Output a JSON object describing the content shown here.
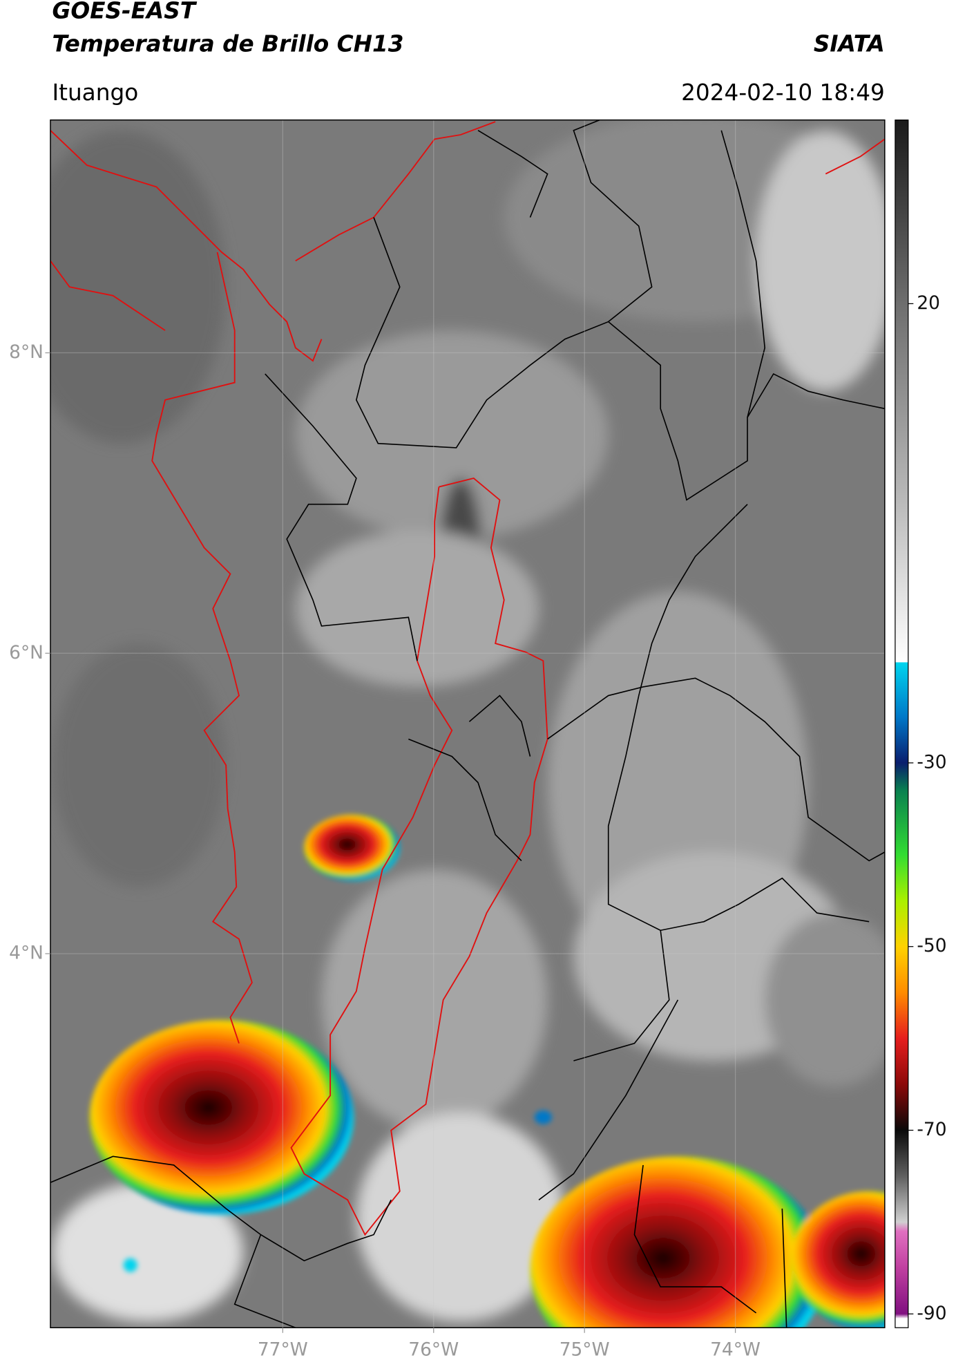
{
  "header": {
    "title": "GOES-EAST",
    "subtitle": "Temperatura de Brillo CH13",
    "agency": "SIATA",
    "location": "Ituango",
    "datetime": "2024-02-10 18:49"
  },
  "map": {
    "lonlim": [
      -78.54,
      -73.01
    ],
    "latlim": [
      1.51,
      9.55
    ],
    "lonticks": [
      {
        "value": -77,
        "label": "77°W"
      },
      {
        "value": -76,
        "label": "76°W"
      },
      {
        "value": -75,
        "label": "75°W"
      },
      {
        "value": -74,
        "label": "74°W"
      }
    ],
    "latticks": [
      {
        "value": 8,
        "label": "8°N"
      },
      {
        "value": 6,
        "label": "6°N"
      },
      {
        "value": 4,
        "label": "4°N"
      }
    ],
    "grid": true
  },
  "colorbar": {
    "lim": [
      -91.5,
      40
    ],
    "ticks": [
      20,
      -30,
      -50,
      -70,
      -90
    ],
    "colormap": [
      [
        40,
        "#1a1a1a"
      ],
      [
        20,
        "#6e6e6e"
      ],
      [
        0,
        "#b4b4b4"
      ],
      [
        -19,
        "#ffffff"
      ],
      [
        -19.1,
        "#00d4ee"
      ],
      [
        -25,
        "#0078c8"
      ],
      [
        -30,
        "#0a1e6e"
      ],
      [
        -33,
        "#0a8050"
      ],
      [
        -40,
        "#32dc32"
      ],
      [
        -45,
        "#aaf000"
      ],
      [
        -50,
        "#ffd200"
      ],
      [
        -55,
        "#ff8c00"
      ],
      [
        -60,
        "#e61e1e"
      ],
      [
        -65,
        "#8c0a0a"
      ],
      [
        -70,
        "#0a0a0a"
      ],
      [
        -75,
        "#606060"
      ],
      [
        -80,
        "#d0d0d0"
      ],
      [
        -81,
        "#e070c0"
      ],
      [
        -85,
        "#c040a0"
      ],
      [
        -90,
        "#801080"
      ],
      [
        -90.5,
        "#ffffff"
      ]
    ]
  }
}
